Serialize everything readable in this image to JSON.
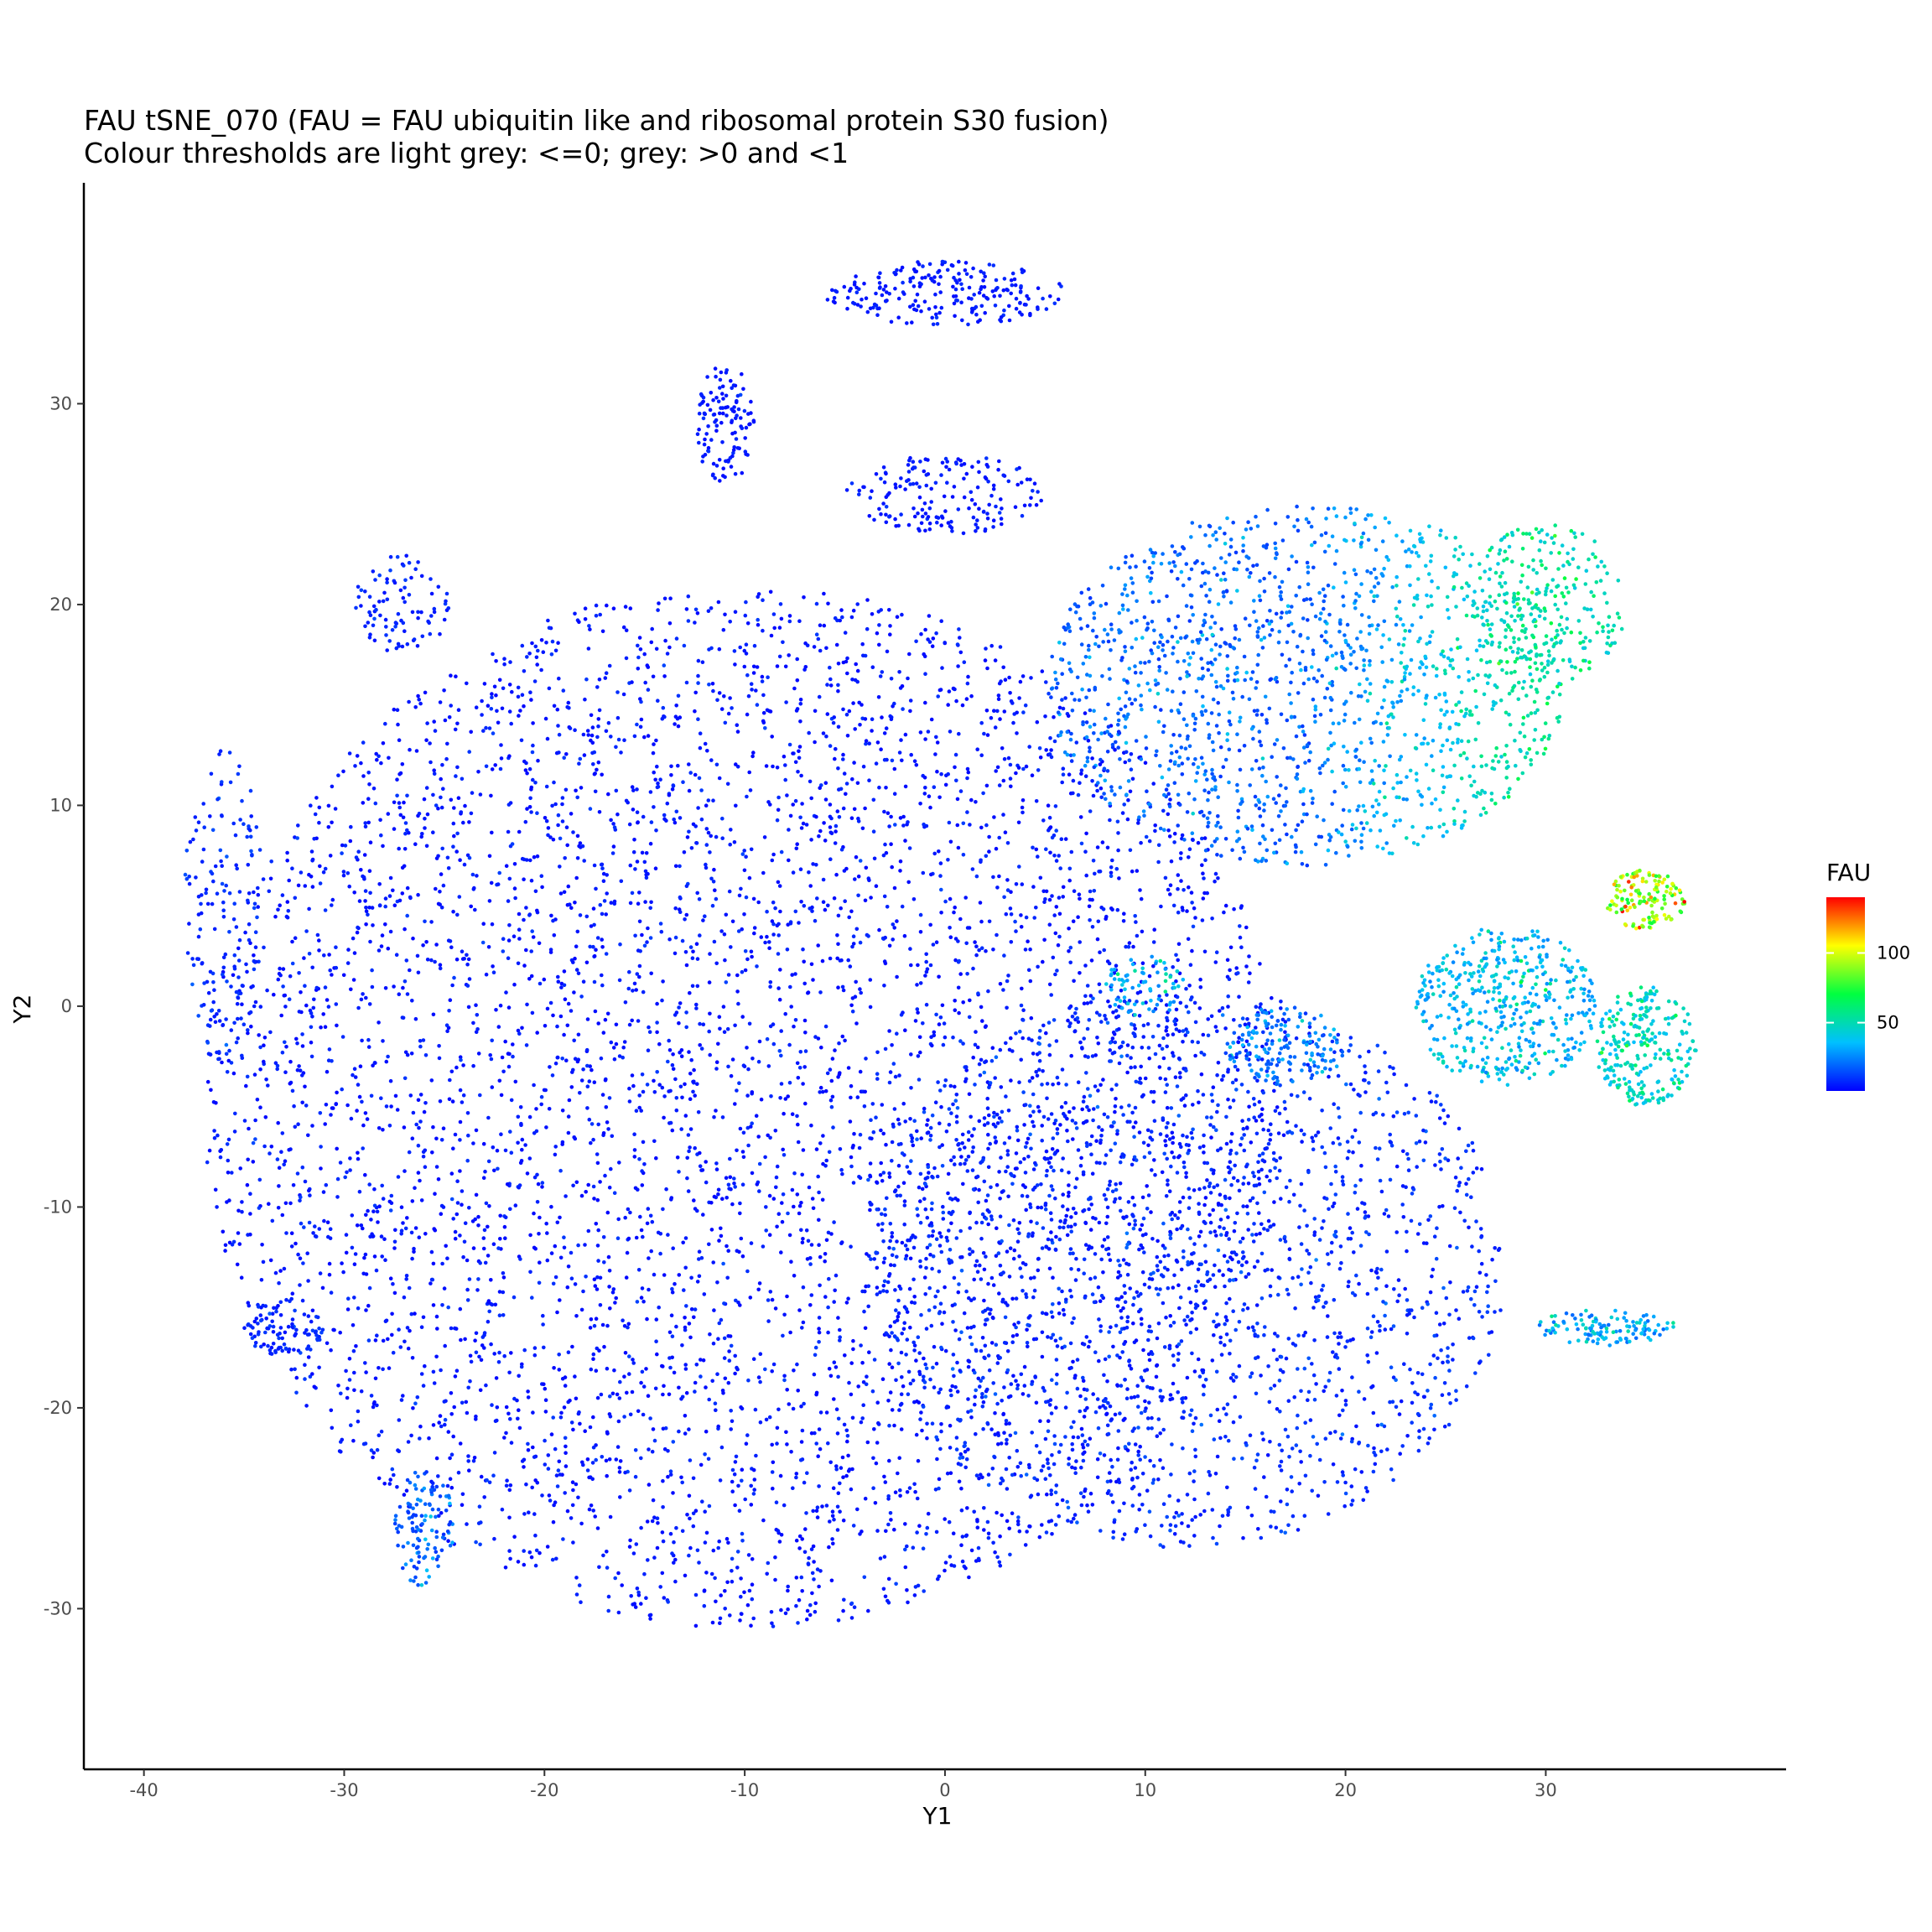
{
  "chart_data": {
    "type": "scatter",
    "title": "FAU tSNE_070 (FAU = FAU ubiquitin like and ribosomal protein S30 fusion)",
    "subtitle": "Colour thresholds are light grey: <=0; grey: >0 and <1",
    "xlabel": "Y1",
    "ylabel": "Y2",
    "xlim": [
      -43,
      42
    ],
    "ylim": [
      -38,
      41
    ],
    "x_ticks": [
      -40,
      -30,
      -20,
      -10,
      0,
      10,
      20,
      30
    ],
    "y_ticks": [
      -30,
      -20,
      -10,
      0,
      10,
      20,
      30
    ],
    "grid": false,
    "color_scale": {
      "name": "FAU",
      "min": 1,
      "max": 140,
      "ticks": [
        50,
        100
      ],
      "colors": [
        "#0000ff",
        "#00c0ff",
        "#00ff40",
        "#ffff00",
        "#ff0000"
      ]
    },
    "clusters": [
      {
        "cx": -10,
        "cy": -5,
        "rx": 27,
        "ry": 26,
        "n": 5200,
        "value": 2,
        "spread": 4
      },
      {
        "cx": 12,
        "cy": -13,
        "rx": 16,
        "ry": 14,
        "n": 1800,
        "value": 4,
        "spread": 6
      },
      {
        "cx": 18,
        "cy": 16,
        "rx": 13,
        "ry": 9,
        "n": 1500,
        "value": 10,
        "spread": 12,
        "grad_value": 40
      },
      {
        "cx": 30,
        "cy": 20,
        "rx": 4,
        "ry": 4,
        "n": 250,
        "value": 40,
        "spread": 15
      },
      {
        "cx": 28,
        "cy": 0,
        "rx": 4.5,
        "ry": 4,
        "n": 450,
        "value": 25,
        "spread": 15
      },
      {
        "cx": 35,
        "cy": -2,
        "rx": 2.5,
        "ry": 3,
        "n": 250,
        "value": 35,
        "spread": 15
      },
      {
        "cx": 35,
        "cy": 5.3,
        "rx": 2,
        "ry": 1.5,
        "n": 140,
        "value": 70,
        "spread": 30
      },
      {
        "cx": 33,
        "cy": -16,
        "rx": 3.5,
        "ry": 0.9,
        "n": 120,
        "value": 20,
        "spread": 15
      },
      {
        "cx": 0,
        "cy": 35.5,
        "rx": 6,
        "ry": 1.6,
        "n": 220,
        "value": 3,
        "spread": 3
      },
      {
        "cx": -11,
        "cy": 29,
        "rx": 1.5,
        "ry": 3,
        "n": 120,
        "value": 3,
        "spread": 3
      },
      {
        "cx": 0,
        "cy": 25.5,
        "rx": 5,
        "ry": 2,
        "n": 170,
        "value": 3,
        "spread": 3
      },
      {
        "cx": -27,
        "cy": 20,
        "rx": 2.5,
        "ry": 2.5,
        "n": 90,
        "value": 4,
        "spread": 4
      },
      {
        "cx": -36,
        "cy": 5,
        "rx": 2,
        "ry": 8,
        "n": 160,
        "value": 5,
        "spread": 5
      },
      {
        "cx": -33,
        "cy": -16,
        "rx": 2,
        "ry": 1.5,
        "n": 80,
        "value": 5,
        "spread": 5
      },
      {
        "cx": -26,
        "cy": -26,
        "rx": 1.5,
        "ry": 3,
        "n": 110,
        "value": 10,
        "spread": 10
      },
      {
        "cx": 10,
        "cy": 1,
        "rx": 2,
        "ry": 1.5,
        "n": 70,
        "value": 25,
        "spread": 15
      },
      {
        "cx": 17,
        "cy": -2,
        "rx": 3,
        "ry": 2,
        "n": 150,
        "value": 15,
        "spread": 12
      }
    ]
  }
}
